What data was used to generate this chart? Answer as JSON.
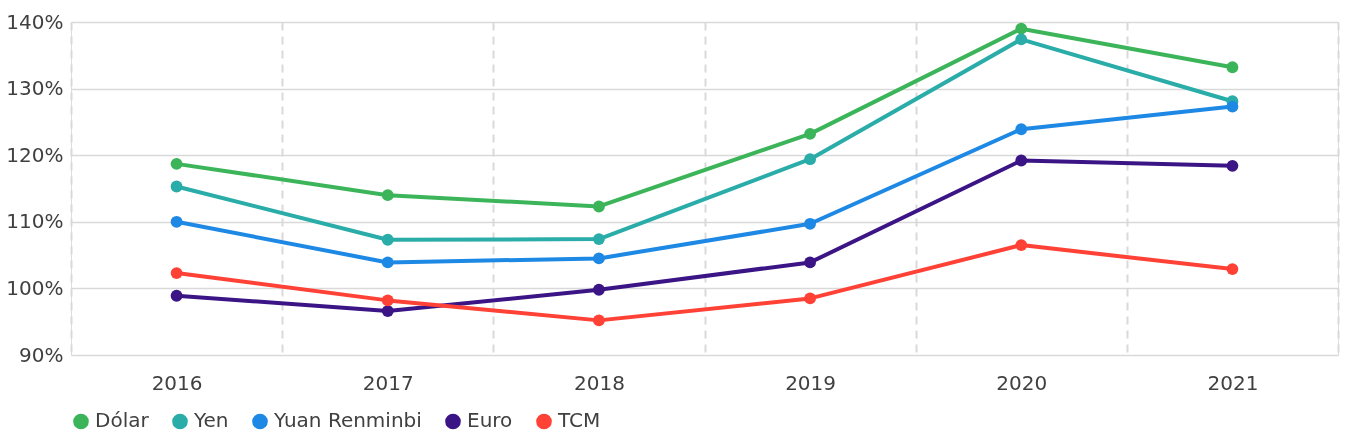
{
  "chart_data": {
    "type": "line",
    "categories": [
      "2016",
      "2017",
      "2018",
      "2019",
      "2020",
      "2021"
    ],
    "series": [
      {
        "name": "Dólar",
        "color": "#3cb55a",
        "values": [
          118.7,
          114.0,
          112.3,
          123.2,
          139.0,
          133.2
        ]
      },
      {
        "name": "Yen",
        "color": "#2aaca8",
        "values": [
          115.3,
          107.3,
          107.4,
          119.4,
          137.4,
          128.1
        ]
      },
      {
        "name": "Yuan Renminbi",
        "color": "#1e88e5",
        "values": [
          110.0,
          103.9,
          104.5,
          109.7,
          123.9,
          127.3
        ]
      },
      {
        "name": "Euro",
        "color": "#3b1585",
        "values": [
          98.9,
          96.6,
          99.8,
          103.9,
          119.2,
          118.4
        ]
      },
      {
        "name": "TCM",
        "color": "#ff4136",
        "values": [
          102.3,
          98.2,
          95.2,
          98.5,
          106.5,
          102.9
        ]
      }
    ],
    "ylim": [
      90,
      140
    ],
    "yticks": [
      {
        "value": 90,
        "label": "90%"
      },
      {
        "value": 100,
        "label": "100%"
      },
      {
        "value": 110,
        "label": "110%"
      },
      {
        "value": 120,
        "label": "120%"
      },
      {
        "value": 130,
        "label": "130%"
      },
      {
        "value": 140,
        "label": "140%"
      }
    ],
    "grid": true,
    "legend": "bottom",
    "marker": "circle",
    "line_style": "solid"
  }
}
